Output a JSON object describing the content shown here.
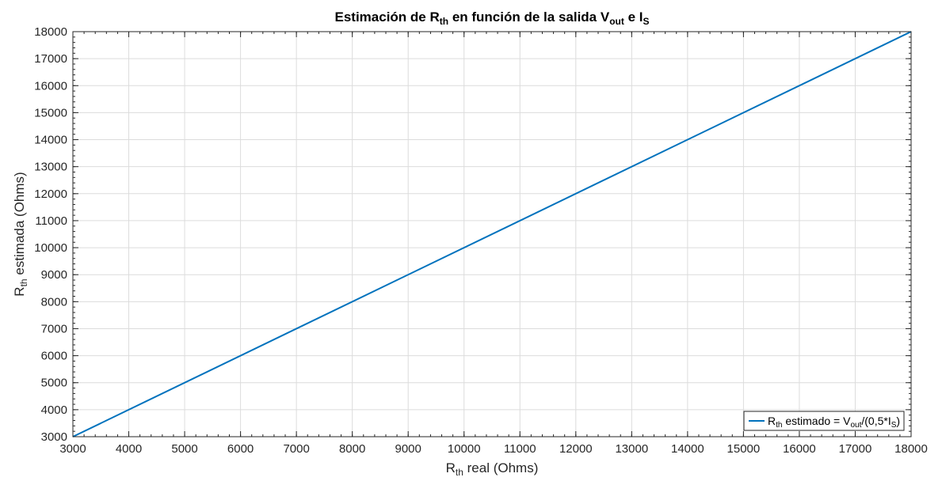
{
  "chart_data": {
    "type": "line",
    "title": {
      "part1": "Estimación de R",
      "sub1": "th",
      "part2": " en función de la salida V",
      "sub2": "out",
      "part3": " e I",
      "sub3": "S"
    },
    "xlabel": {
      "base": "R",
      "sub": "th",
      "rest": " real  (Ohms)"
    },
    "ylabel": {
      "base": "R",
      "sub": "th",
      "rest": " estimada (Ohms)"
    },
    "xlim": [
      3000,
      18000
    ],
    "ylim": [
      3000,
      18000
    ],
    "xticks": [
      3000,
      4000,
      5000,
      6000,
      7000,
      8000,
      9000,
      10000,
      11000,
      12000,
      13000,
      14000,
      15000,
      16000,
      17000,
      18000
    ],
    "yticks": [
      3000,
      4000,
      5000,
      6000,
      7000,
      8000,
      9000,
      10000,
      11000,
      12000,
      13000,
      14000,
      15000,
      16000,
      17000,
      18000
    ],
    "grid": true,
    "legend_position": "bottom-right",
    "series": [
      {
        "legend": {
          "base": "R",
          "sub1": "th",
          "mid": " estimado = V",
          "sub2": "out",
          "mid2": "/(0,5*I",
          "sub3": "S",
          "end": ")"
        },
        "color": "#0072BD",
        "x": [
          3000,
          18000
        ],
        "y": [
          3000,
          18000
        ]
      }
    ]
  }
}
